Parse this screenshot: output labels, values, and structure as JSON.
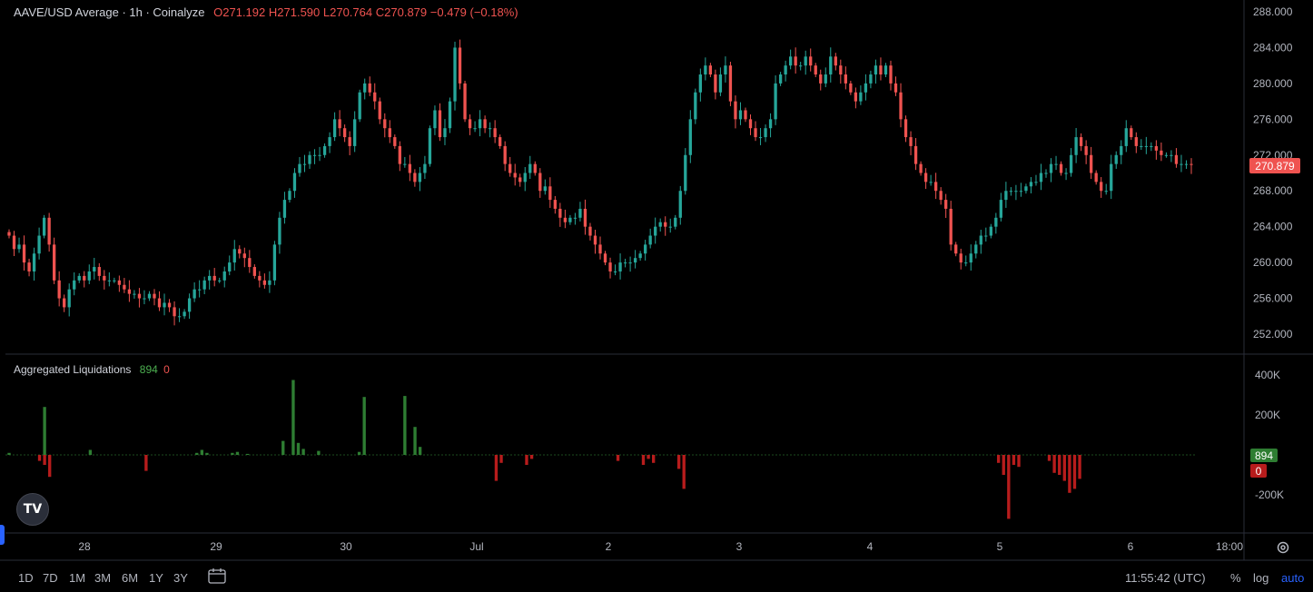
{
  "header": {
    "symbol_line": "AAVE/USD Average · 1h · Coinalyze",
    "open": "O271.192",
    "high": "H271.590",
    "low": "L270.764",
    "close": "C270.879",
    "change": "−0.479 (−0.18%)"
  },
  "price_axis": {
    "ticks": [
      "288.000",
      "284.000",
      "280.000",
      "276.000",
      "272.000",
      "268.000",
      "264.000",
      "260.000",
      "256.000",
      "252.000"
    ],
    "last_price": "270.879"
  },
  "indicator": {
    "title": "Aggregated Liquidations",
    "value_long": "894",
    "value_short": "0",
    "ticks": [
      "400K",
      "200K",
      "-200K"
    ],
    "badge_long": "894",
    "badge_short": "0"
  },
  "time_axis": {
    "labels": [
      "28",
      "29",
      "30",
      "Jul",
      "2",
      "3",
      "4",
      "5",
      "6",
      "18:00"
    ]
  },
  "bottom_toolbar": {
    "ranges": [
      "1D",
      "7D",
      "1M",
      "3M",
      "6M",
      "1Y",
      "3Y"
    ],
    "clock": "11:55:42 (UTC)",
    "pct": "%",
    "log": "log",
    "auto": "auto"
  },
  "logo_text": "TV",
  "colors": {
    "up": "#26a69a",
    "down": "#ef5350",
    "liq_long": "#2e7d32",
    "liq_short": "#b71c1c",
    "background": "#000000"
  },
  "chart_data": [
    {
      "type": "candlestick",
      "interval": "1h",
      "y_range": [
        250,
        289
      ],
      "x_labels": [
        "28",
        "29",
        "30",
        "Jul",
        "2",
        "3",
        "4",
        "5",
        "6",
        "18:00"
      ],
      "closes": [
        263,
        261.5,
        262,
        260,
        259,
        261,
        263,
        265,
        262,
        258,
        256,
        255,
        257,
        258,
        258.5,
        258,
        259,
        259.5,
        258.5,
        258,
        258,
        258,
        257.5,
        257,
        256.5,
        256.5,
        256,
        256,
        256.5,
        256,
        255,
        255.5,
        255,
        254,
        254,
        254.5,
        256,
        257,
        257,
        258,
        258.5,
        258,
        258,
        259,
        260,
        261.5,
        261,
        260.5,
        259.5,
        258.5,
        258,
        257.5,
        258,
        262,
        265,
        267,
        268,
        270,
        271,
        271,
        272,
        272,
        272,
        273,
        274,
        276,
        275,
        274,
        273,
        276,
        279,
        280,
        279,
        278,
        276,
        275,
        274,
        273,
        271,
        271,
        270,
        269,
        270,
        271,
        275,
        277,
        274,
        275,
        278,
        284,
        280,
        276,
        275,
        275,
        276,
        275,
        275,
        274,
        273,
        271,
        270,
        269.5,
        269,
        270,
        271,
        270,
        268,
        268.5,
        267,
        266,
        265,
        264.5,
        265,
        265,
        266,
        264,
        263,
        262,
        261,
        260,
        259,
        259,
        260,
        260,
        260,
        260.5,
        261,
        262,
        263,
        264,
        264.5,
        264,
        264,
        265,
        268,
        272,
        276,
        279,
        281,
        282,
        281,
        279,
        281,
        282,
        278,
        276,
        277,
        276,
        275,
        274,
        274,
        275,
        276,
        280,
        281,
        282,
        283,
        282,
        282,
        283,
        282,
        281,
        280,
        281,
        283,
        282,
        281,
        280,
        279,
        278,
        279,
        280,
        281,
        282,
        281,
        282,
        280,
        279,
        276,
        274,
        273,
        271,
        270,
        269,
        269,
        268,
        267,
        266,
        262,
        261,
        260,
        260,
        261,
        262,
        263,
        263,
        264,
        265,
        267,
        268,
        268,
        268,
        268,
        268.5,
        269,
        269,
        270,
        270,
        271,
        271,
        270,
        270,
        272,
        274,
        273,
        272,
        270,
        269,
        268,
        268,
        271,
        272,
        273,
        275,
        274,
        273,
        273,
        273,
        273,
        272.5,
        272,
        272,
        272,
        271,
        271,
        271,
        270.9
      ]
    },
    {
      "type": "bar",
      "title": "Aggregated Liquidations",
      "y_range": [
        -300000,
        450000
      ],
      "series": [
        {
          "name": "long",
          "values": [
            10000,
            0,
            0,
            0,
            0,
            0,
            0,
            240000,
            0,
            0,
            0,
            0,
            0,
            0,
            0,
            0,
            25000,
            0,
            0,
            0,
            0,
            0,
            0,
            0,
            0,
            0,
            0,
            0,
            0,
            0,
            0,
            0,
            0,
            0,
            0,
            0,
            0,
            10000,
            25000,
            10000,
            0,
            0,
            0,
            0,
            10000,
            15000,
            0,
            5000,
            0,
            0,
            0,
            0,
            0,
            0,
            70000,
            0,
            375000,
            60000,
            30000,
            0,
            0,
            20000,
            0,
            0,
            0,
            0,
            0,
            0,
            0,
            15000,
            290000,
            0,
            0,
            0,
            0,
            0,
            0,
            0,
            295000,
            0,
            140000,
            40000,
            0,
            0,
            0,
            0,
            0,
            0,
            0,
            0,
            0,
            0,
            0,
            0,
            0,
            0,
            0,
            0,
            0,
            0,
            0,
            0,
            0,
            0,
            0,
            0,
            0,
            0,
            0,
            0,
            0,
            0,
            0,
            0,
            0,
            0,
            0,
            0,
            0,
            0,
            0,
            0,
            0,
            0,
            0,
            0,
            0,
            0,
            0,
            0,
            0,
            0,
            0,
            0,
            0,
            0,
            0,
            0,
            0,
            0,
            0,
            0,
            0,
            0,
            0,
            0,
            0,
            0,
            0,
            0,
            0,
            0,
            0,
            0,
            0,
            0,
            0,
            0,
            0,
            0,
            0,
            0,
            0,
            0,
            0,
            0,
            0,
            0,
            0,
            0,
            0,
            0,
            0,
            0,
            0,
            0,
            0,
            0,
            0,
            0,
            0,
            0,
            0,
            0,
            0,
            0,
            0,
            0,
            0,
            0,
            0,
            0,
            0,
            0,
            0,
            0,
            0,
            0,
            0,
            0,
            0,
            0,
            0,
            0,
            0,
            0,
            0,
            0,
            0,
            0,
            0,
            0,
            0,
            0,
            0,
            0,
            0,
            0,
            0,
            0,
            0,
            0,
            0,
            0,
            0,
            0,
            0,
            0,
            0,
            0,
            0,
            0,
            0,
            0
          ]
        },
        {
          "name": "short",
          "values": [
            0,
            0,
            0,
            0,
            0,
            0,
            -30000,
            -50000,
            -110000,
            0,
            0,
            0,
            0,
            0,
            0,
            0,
            0,
            0,
            0,
            0,
            0,
            0,
            0,
            0,
            0,
            0,
            0,
            -80000,
            0,
            0,
            0,
            0,
            0,
            0,
            0,
            0,
            0,
            0,
            0,
            0,
            0,
            0,
            0,
            0,
            0,
            0,
            0,
            0,
            0,
            0,
            0,
            0,
            0,
            0,
            0,
            0,
            0,
            0,
            0,
            0,
            0,
            0,
            0,
            0,
            0,
            0,
            0,
            0,
            0,
            0,
            0,
            0,
            0,
            0,
            0,
            0,
            0,
            0,
            0,
            0,
            0,
            0,
            0,
            0,
            0,
            0,
            0,
            0,
            0,
            0,
            0,
            0,
            0,
            0,
            0,
            0,
            -130000,
            -40000,
            0,
            0,
            0,
            0,
            -50000,
            -20000,
            0,
            0,
            0,
            0,
            0,
            0,
            0,
            0,
            0,
            0,
            0,
            0,
            0,
            0,
            0,
            0,
            -30000,
            0,
            0,
            0,
            0,
            -50000,
            -20000,
            -40000,
            0,
            0,
            0,
            0,
            -70000,
            -170000,
            0,
            0,
            0,
            0,
            0,
            0,
            0,
            0,
            0,
            0,
            0,
            0,
            0,
            0,
            0,
            0,
            0,
            0,
            0,
            0,
            0,
            0,
            0,
            0,
            0,
            0,
            0,
            0,
            0,
            0,
            0,
            0,
            0,
            0,
            0,
            0,
            0,
            0,
            0,
            0,
            0,
            0,
            0,
            0,
            0,
            0,
            0,
            0,
            0,
            0,
            0,
            0,
            0,
            0,
            0,
            0,
            0,
            0,
            0,
            0,
            0,
            -40000,
            -100000,
            -320000,
            -50000,
            -60000,
            0,
            0,
            0,
            0,
            0,
            -30000,
            -90000,
            -100000,
            -130000,
            -190000,
            -170000,
            -120000,
            0,
            0,
            0,
            0,
            0,
            0,
            0,
            0,
            0,
            0,
            0,
            0,
            0,
            0,
            0,
            0,
            0,
            0,
            0,
            0,
            0,
            0,
            0,
            -80000,
            -20000,
            0,
            0,
            0,
            0,
            0,
            0,
            0,
            0,
            0,
            0,
            0,
            0,
            0,
            0,
            0
          ]
        }
      ]
    }
  ]
}
